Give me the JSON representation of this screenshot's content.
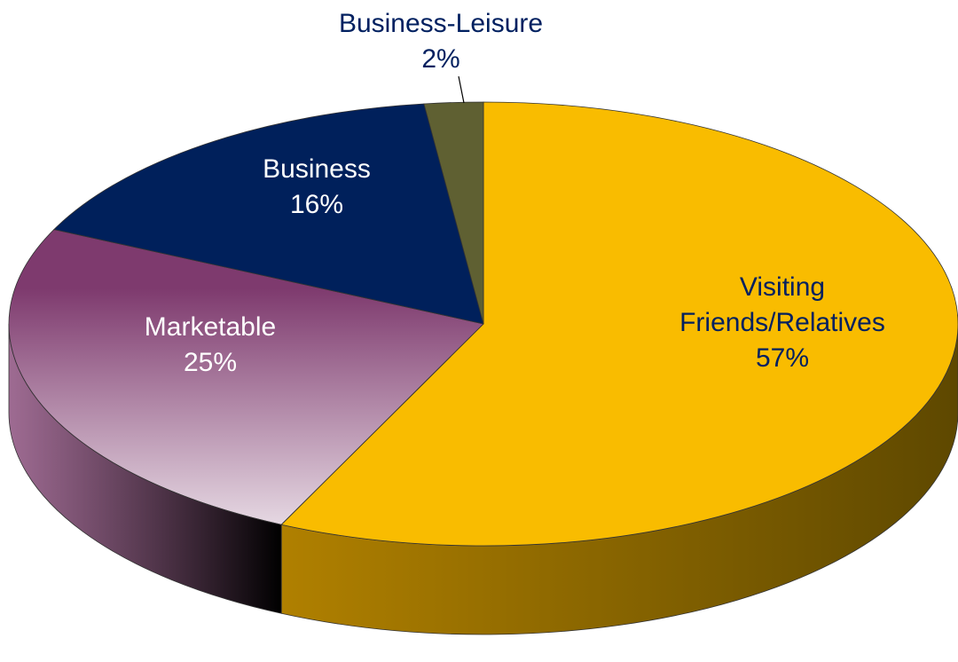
{
  "chart_data": {
    "type": "pie",
    "categories": [
      "Visiting Friends/Relatives",
      "Marketable",
      "Business",
      "Business-Leisure"
    ],
    "values": [
      57,
      25,
      16,
      2
    ],
    "value_labels": [
      "57%",
      "25%",
      "16%",
      "2%"
    ],
    "colors": [
      "#f9bc00",
      "#7e3a6e",
      "#00205b",
      "#5f6032"
    ]
  }
}
